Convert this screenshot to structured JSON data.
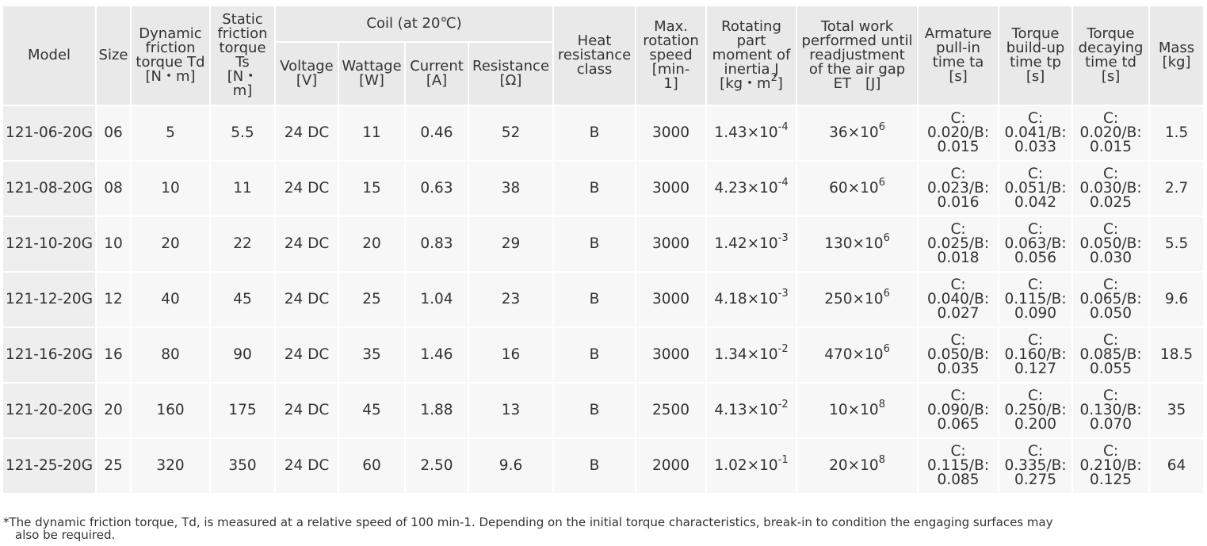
{
  "headers": {
    "model": "Model",
    "size": "Size",
    "dynamic": [
      "Dynamic",
      "friction",
      "torque Td",
      "[N・m]"
    ],
    "static": [
      "Static",
      "friction",
      "torque",
      "Ts",
      "[N・",
      "m]"
    ],
    "coil_group": "Coil (at 20℃)",
    "voltage": [
      "Voltage",
      "[V]"
    ],
    "wattage": [
      "Wattage",
      "[W]"
    ],
    "current": [
      "Current",
      "[A]"
    ],
    "resistance": [
      "Resistance",
      "[Ω]"
    ],
    "heat": [
      "Heat",
      "resistance",
      "class"
    ],
    "max_speed": [
      "Max.",
      "rotation",
      "speed",
      "[min-",
      "1]"
    ],
    "inertia": [
      "Rotating",
      "part",
      "moment of",
      "inertia J"
    ],
    "inertia_unit_base": "[kg・m",
    "inertia_unit_exp": "2",
    "inertia_unit_close": "]",
    "work": [
      "Total work",
      "performed until",
      "readjustment",
      "of the air gap",
      "ET　[J]"
    ],
    "armature": [
      "Armature",
      "pull-in",
      "time ta",
      "[s]"
    ],
    "buildup": [
      "Torque",
      "build-up",
      "time tp",
      "[s]"
    ],
    "decaying": [
      "Torque",
      "decaying",
      "time td",
      "[s]"
    ],
    "mass": [
      "Mass",
      "[kg]"
    ]
  },
  "rows": [
    {
      "model": "121-06-20G",
      "size": "06",
      "dynamic": "5",
      "static": "5.5",
      "voltage": "24 DC",
      "wattage": "11",
      "current": "0.46",
      "resistance": "52",
      "heat": "B",
      "speed": "3000",
      "inertia_base": "1.43×10",
      "inertia_exp": "-4",
      "work_base": "36×10",
      "work_exp": "6",
      "ta": [
        "C:",
        "0.020/B:",
        "0.015"
      ],
      "tp": [
        "C:",
        "0.041/B:",
        "0.033"
      ],
      "td": [
        "C:",
        "0.020/B:",
        "0.015"
      ],
      "mass": "1.5"
    },
    {
      "model": "121-08-20G",
      "size": "08",
      "dynamic": "10",
      "static": "11",
      "voltage": "24 DC",
      "wattage": "15",
      "current": "0.63",
      "resistance": "38",
      "heat": "B",
      "speed": "3000",
      "inertia_base": "4.23×10",
      "inertia_exp": "-4",
      "work_base": "60×10",
      "work_exp": "6",
      "ta": [
        "C:",
        "0.023/B:",
        "0.016"
      ],
      "tp": [
        "C:",
        "0.051/B:",
        "0.042"
      ],
      "td": [
        "C:",
        "0.030/B:",
        "0.025"
      ],
      "mass": "2.7"
    },
    {
      "model": "121-10-20G",
      "size": "10",
      "dynamic": "20",
      "static": "22",
      "voltage": "24 DC",
      "wattage": "20",
      "current": "0.83",
      "resistance": "29",
      "heat": "B",
      "speed": "3000",
      "inertia_base": "1.42×10",
      "inertia_exp": "-3",
      "work_base": "130×10",
      "work_exp": "6",
      "ta": [
        "C:",
        "0.025/B:",
        "0.018"
      ],
      "tp": [
        "C:",
        "0.063/B:",
        "0.056"
      ],
      "td": [
        "C:",
        "0.050/B:",
        "0.030"
      ],
      "mass": "5.5"
    },
    {
      "model": "121-12-20G",
      "size": "12",
      "dynamic": "40",
      "static": "45",
      "voltage": "24 DC",
      "wattage": "25",
      "current": "1.04",
      "resistance": "23",
      "heat": "B",
      "speed": "3000",
      "inertia_base": "4.18×10",
      "inertia_exp": "-3",
      "work_base": "250×10",
      "work_exp": "6",
      "ta": [
        "C:",
        "0.040/B:",
        "0.027"
      ],
      "tp": [
        "C:",
        "0.115/B:",
        "0.090"
      ],
      "td": [
        "C:",
        "0.065/B:",
        "0.050"
      ],
      "mass": "9.6"
    },
    {
      "model": "121-16-20G",
      "size": "16",
      "dynamic": "80",
      "static": "90",
      "voltage": "24 DC",
      "wattage": "35",
      "current": "1.46",
      "resistance": "16",
      "heat": "B",
      "speed": "3000",
      "inertia_base": "1.34×10",
      "inertia_exp": "-2",
      "work_base": "470×10",
      "work_exp": "6",
      "ta": [
        "C:",
        "0.050/B:",
        "0.035"
      ],
      "tp": [
        "C:",
        "0.160/B:",
        "0.127"
      ],
      "td": [
        "C:",
        "0.085/B:",
        "0.055"
      ],
      "mass": "18.5"
    },
    {
      "model": "121-20-20G",
      "size": "20",
      "dynamic": "160",
      "static": "175",
      "voltage": "24 DC",
      "wattage": "45",
      "current": "1.88",
      "resistance": "13",
      "heat": "B",
      "speed": "2500",
      "inertia_base": "4.13×10",
      "inertia_exp": "-2",
      "work_base": "10×10",
      "work_exp": "8",
      "ta": [
        "C:",
        "0.090/B:",
        "0.065"
      ],
      "tp": [
        "C:",
        "0.250/B:",
        "0.200"
      ],
      "td": [
        "C:",
        "0.130/B:",
        "0.070"
      ],
      "mass": "35"
    },
    {
      "model": "121-25-20G",
      "size": "25",
      "dynamic": "320",
      "static": "350",
      "voltage": "24 DC",
      "wattage": "60",
      "current": "2.50",
      "resistance": "9.6",
      "heat": "B",
      "speed": "2000",
      "inertia_base": "1.02×10",
      "inertia_exp": "-1",
      "work_base": "20×10",
      "work_exp": "8",
      "ta": [
        "C:",
        "0.115/B:",
        "0.085"
      ],
      "tp": [
        "C:",
        "0.335/B:",
        "0.275"
      ],
      "td": [
        "C:",
        "0.210/B:",
        "0.125"
      ],
      "mass": "64"
    }
  ],
  "footnote": {
    "line1": "*The dynamic friction torque, Td, is measured at a relative speed of 100 min-1. Depending on the initial torque characteristics, break-in to condition the engaging surfaces may",
    "line2": "also be required."
  }
}
